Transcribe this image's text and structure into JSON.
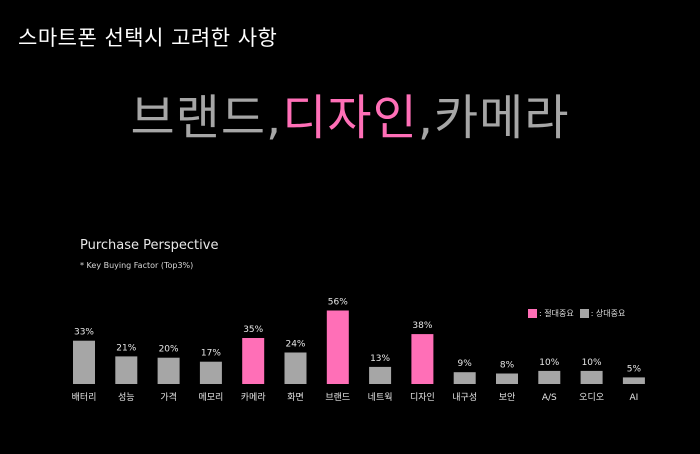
{
  "slide_title": "스마트폰 선택시 고려한 사항",
  "headline": {
    "part1": "브랜드,",
    "part2": "디자인",
    "part3": ",카메라"
  },
  "colors": {
    "background": "#000000",
    "accent": "#ff6fb7",
    "gray": "#a6a6a6"
  },
  "chart_data": {
    "type": "bar",
    "title": "Purchase Perspective",
    "subtitle": "* Key Buying Factor (Top3%)",
    "categories": [
      "배터리",
      "성능",
      "가격",
      "메모리",
      "카메라",
      "화면",
      "브랜드",
      "네트웍",
      "디자인",
      "내구성",
      "보안",
      "A/S",
      "오디오",
      "AI"
    ],
    "values": [
      33,
      21,
      20,
      17,
      35,
      24,
      56,
      13,
      38,
      9,
      8,
      10,
      10,
      5
    ],
    "value_labels": [
      "33%",
      "21%",
      "20%",
      "17%",
      "35%",
      "24%",
      "56%",
      "13%",
      "38%",
      "9%",
      "8%",
      "10%",
      "10%",
      "5%"
    ],
    "group": [
      "상대중요",
      "상대중요",
      "상대중요",
      "상대중요",
      "절대중요",
      "상대중요",
      "절대중요",
      "상대중요",
      "절대중요",
      "상대중요",
      "상대중요",
      "상대중요",
      "상대중요",
      "상대중요"
    ],
    "legend": [
      {
        "label": ": 절대중요",
        "key": "절대중요",
        "color": "#ff6fb7"
      },
      {
        "label": ": 상대중요",
        "key": "상대중요",
        "color": "#a6a6a6"
      }
    ],
    "legend_position": "top-right",
    "ylim": [
      0,
      60
    ],
    "grid": false
  }
}
